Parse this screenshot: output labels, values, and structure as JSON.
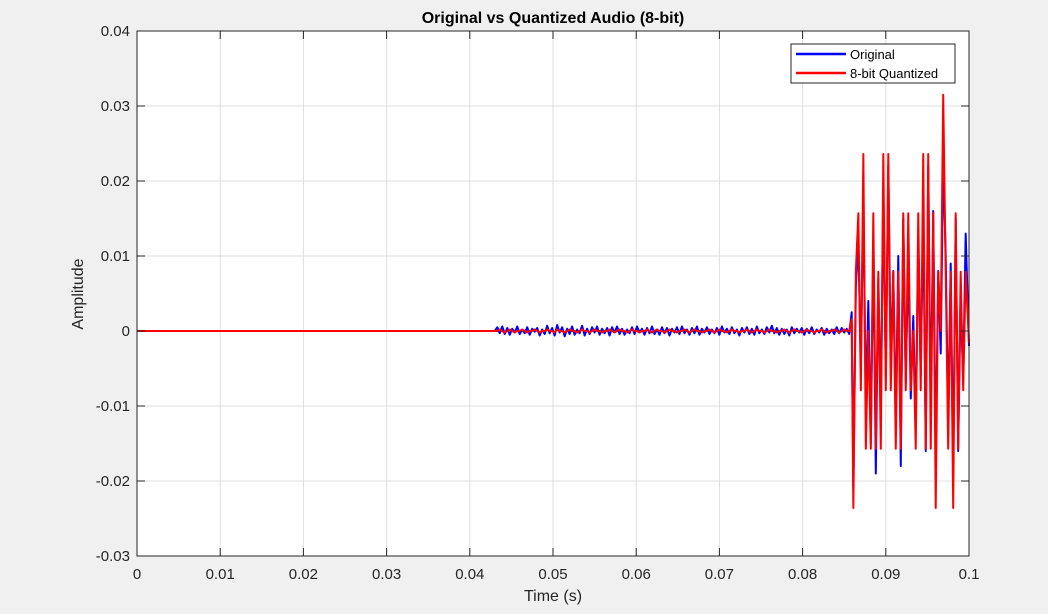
{
  "chart_data": {
    "type": "line",
    "title": "Original vs Quantized Audio (8-bit)",
    "xlabel": "Time (s)",
    "ylabel": "Amplitude",
    "xlim": [
      0,
      0.1
    ],
    "ylim": [
      -0.03,
      0.04
    ],
    "xticks": [
      0,
      0.01,
      0.02,
      0.03,
      0.04,
      0.05,
      0.06,
      0.07,
      0.08,
      0.09,
      0.1
    ],
    "xtick_labels": [
      "0",
      "0.01",
      "0.02",
      "0.03",
      "0.04",
      "0.05",
      "0.06",
      "0.07",
      "0.08",
      "0.09",
      "0.1"
    ],
    "yticks": [
      -0.03,
      -0.02,
      -0.01,
      0,
      0.01,
      0.02,
      0.03,
      0.04
    ],
    "ytick_labels": [
      "-0.03",
      "-0.02",
      "-0.01",
      "0",
      "0.01",
      "0.02",
      "0.03",
      "0.04"
    ],
    "grid": true,
    "legend_position": "top-right",
    "series": [
      {
        "name": "Original",
        "color": "#0000ff",
        "x": [
          0,
          0.043,
          0.0433,
          0.0436,
          0.0439,
          0.0442,
          0.0445,
          0.0448,
          0.0451,
          0.0454,
          0.0457,
          0.046,
          0.0463,
          0.0466,
          0.0469,
          0.0472,
          0.0475,
          0.0478,
          0.0481,
          0.0484,
          0.0487,
          0.049,
          0.0493,
          0.0496,
          0.0499,
          0.0502,
          0.0505,
          0.0508,
          0.0511,
          0.0514,
          0.0517,
          0.052,
          0.0523,
          0.0526,
          0.0529,
          0.0532,
          0.0535,
          0.0538,
          0.0541,
          0.0544,
          0.0547,
          0.055,
          0.0553,
          0.0556,
          0.0559,
          0.0562,
          0.0565,
          0.0568,
          0.0571,
          0.0574,
          0.0577,
          0.058,
          0.0583,
          0.0586,
          0.0589,
          0.0592,
          0.0595,
          0.0598,
          0.0601,
          0.0604,
          0.0607,
          0.061,
          0.0613,
          0.0616,
          0.0619,
          0.0622,
          0.0625,
          0.0628,
          0.0631,
          0.0634,
          0.0637,
          0.064,
          0.0643,
          0.0646,
          0.0649,
          0.0652,
          0.0655,
          0.0658,
          0.0661,
          0.0664,
          0.0667,
          0.067,
          0.0673,
          0.0676,
          0.0679,
          0.0682,
          0.0685,
          0.0688,
          0.0691,
          0.0694,
          0.0697,
          0.07,
          0.0703,
          0.0706,
          0.0709,
          0.0712,
          0.0715,
          0.0718,
          0.0721,
          0.0724,
          0.0727,
          0.073,
          0.0733,
          0.0736,
          0.0739,
          0.0742,
          0.0745,
          0.0748,
          0.0751,
          0.0754,
          0.0757,
          0.076,
          0.0763,
          0.0766,
          0.0769,
          0.0772,
          0.0775,
          0.0778,
          0.0781,
          0.0784,
          0.0787,
          0.079,
          0.0793,
          0.0796,
          0.0799,
          0.0802,
          0.0805,
          0.0808,
          0.0811,
          0.0814,
          0.0817,
          0.082,
          0.0823,
          0.0826,
          0.0829,
          0.0832,
          0.0835,
          0.0838,
          0.0841,
          0.0844,
          0.0847,
          0.085,
          0.0853,
          0.0856,
          0.0859,
          0.0861,
          0.0864,
          0.0867,
          0.087,
          0.0873,
          0.0876,
          0.0879,
          0.0882,
          0.0885,
          0.0888,
          0.0891,
          0.0894,
          0.0897,
          0.09,
          0.0903,
          0.0906,
          0.0909,
          0.0912,
          0.0915,
          0.0918,
          0.0921,
          0.0924,
          0.0927,
          0.093,
          0.0933,
          0.0936,
          0.0939,
          0.0942,
          0.0945,
          0.0948,
          0.0951,
          0.0954,
          0.0957,
          0.096,
          0.0963,
          0.0966,
          0.0969,
          0.0972,
          0.0975,
          0.0978,
          0.0981,
          0.0984,
          0.0987,
          0.099,
          0.0993,
          0.0996,
          0.1
        ],
        "y": [
          0,
          0,
          0.0005,
          -0.0003,
          0.0006,
          -0.0004,
          0.0004,
          -0.0005,
          0.0003,
          -0.0002,
          0.0006,
          -0.0004,
          0.0002,
          -0.0003,
          0.0005,
          -0.0005,
          0.0003,
          -0.0001,
          0.0004,
          -0.0006,
          0.0002,
          -0.0004,
          0.0007,
          -0.0003,
          0.0004,
          -0.0006,
          0.0008,
          -0.0002,
          0.0005,
          -0.0007,
          0.0003,
          -0.0004,
          0.0006,
          -0.0005,
          0.0002,
          -0.0003,
          0.0007,
          -0.0006,
          0.0003,
          -0.0004,
          0.0005,
          -0.0002,
          0.0006,
          -0.0005,
          0.0003,
          -0.0003,
          0.0004,
          -0.0006,
          0.0005,
          -0.0002,
          0.0006,
          -0.0004,
          0.0003,
          -0.0005,
          0.0002,
          -0.0003,
          0.0005,
          -0.0004,
          0.0006,
          -0.0002,
          0.0003,
          -0.0005,
          0.0004,
          -0.0003,
          0.0006,
          -0.0004,
          0.0002,
          -0.0005,
          0.0005,
          -0.0003,
          0.0004,
          -0.0006,
          0.0003,
          -0.0002,
          0.0005,
          -0.0004,
          0.0006,
          -0.0003,
          0.0002,
          -0.0005,
          0.0004,
          -0.0003,
          0.0006,
          -0.0005,
          0.0003,
          -0.0002,
          0.0005,
          -0.0004,
          0.0002,
          -0.0003,
          0.0004,
          -0.0005,
          0.0006,
          -0.0002,
          0.0003,
          -0.0004,
          0.0005,
          -0.0003,
          0.0002,
          -0.0006,
          0.0004,
          -0.0002,
          0.0005,
          -0.0004,
          0.0003,
          -0.0005,
          0.0006,
          -0.0003,
          0.0002,
          -0.0004,
          0.0005,
          -0.0002,
          0.0007,
          -0.0003,
          0.0004,
          -0.0005,
          0.0003,
          -0.0004,
          0.0002,
          -0.0006,
          0.0005,
          -0.0003,
          0.0003,
          -0.0002,
          0.0004,
          -0.0005,
          0.0003,
          -0.0003,
          0.0005,
          -0.0004,
          0.0002,
          -0.0002,
          0.0004,
          -0.0005,
          0.0003,
          -0.0003,
          0.0002,
          -0.0004,
          0.0005,
          -0.0003,
          0.0004,
          -0.0002,
          0.0003,
          -0.0004,
          0.0025,
          -0.021,
          0.006,
          0.012,
          -0.005,
          0.018,
          -0.01,
          0.004,
          -0.015,
          0.012,
          -0.019,
          0.007,
          -0.011,
          0.019,
          -0.006,
          0.022,
          -0.004,
          0.008,
          -0.012,
          0.01,
          -0.018,
          0.015,
          -0.007,
          0.01,
          -0.009,
          0.002,
          -0.013,
          0.012,
          -0.006,
          0.016,
          -0.016,
          0.022,
          -0.011,
          0.016,
          -0.017,
          0.008,
          -0.003,
          0.023,
          0.01,
          -0.012,
          0.009,
          -0.019,
          0.015,
          -0.016,
          0.005,
          -0.007,
          0.013,
          -0.002
        ],
        "note": ""
      },
      {
        "name": "8-bit Quantized",
        "color": "#ff0000",
        "x": [
          0,
          0.043,
          0.0433,
          0.0436,
          0.0439,
          0.0442,
          0.0445,
          0.0448,
          0.0451,
          0.0454,
          0.0457,
          0.046,
          0.0463,
          0.0466,
          0.0469,
          0.0472,
          0.0475,
          0.0478,
          0.0481,
          0.0484,
          0.0487,
          0.049,
          0.0493,
          0.0496,
          0.0499,
          0.0502,
          0.0505,
          0.0508,
          0.0511,
          0.0514,
          0.0517,
          0.052,
          0.0523,
          0.0526,
          0.0529,
          0.0532,
          0.0535,
          0.0538,
          0.0541,
          0.0544,
          0.0547,
          0.055,
          0.0553,
          0.0556,
          0.0559,
          0.0562,
          0.0565,
          0.0568,
          0.0571,
          0.0574,
          0.0577,
          0.058,
          0.0583,
          0.0586,
          0.0589,
          0.0592,
          0.0595,
          0.0598,
          0.0601,
          0.0604,
          0.0607,
          0.061,
          0.0613,
          0.0616,
          0.0619,
          0.0622,
          0.0625,
          0.0628,
          0.0631,
          0.0634,
          0.0637,
          0.064,
          0.0643,
          0.0646,
          0.0649,
          0.0652,
          0.0655,
          0.0658,
          0.0661,
          0.0664,
          0.0667,
          0.067,
          0.0673,
          0.0676,
          0.0679,
          0.0682,
          0.0685,
          0.0688,
          0.0691,
          0.0694,
          0.0697,
          0.07,
          0.0703,
          0.0706,
          0.0709,
          0.0712,
          0.0715,
          0.0718,
          0.0721,
          0.0724,
          0.0727,
          0.073,
          0.0733,
          0.0736,
          0.0739,
          0.0742,
          0.0745,
          0.0748,
          0.0751,
          0.0754,
          0.0757,
          0.076,
          0.0763,
          0.0766,
          0.0769,
          0.0772,
          0.0775,
          0.0778,
          0.0781,
          0.0784,
          0.0787,
          0.079,
          0.0793,
          0.0796,
          0.0799,
          0.0802,
          0.0805,
          0.0808,
          0.0811,
          0.0814,
          0.0817,
          0.082,
          0.0823,
          0.0826,
          0.0829,
          0.0832,
          0.0835,
          0.0838,
          0.0841,
          0.0844,
          0.0847,
          0.085,
          0.0853,
          0.0856,
          0.0859,
          0.0861,
          0.0864,
          0.0867,
          0.087,
          0.0873,
          0.0876,
          0.0879,
          0.0882,
          0.0885,
          0.0888,
          0.0891,
          0.0894,
          0.0897,
          0.09,
          0.0903,
          0.0906,
          0.0909,
          0.0912,
          0.0915,
          0.0918,
          0.0921,
          0.0924,
          0.0927,
          0.093,
          0.0933,
          0.0936,
          0.0939,
          0.0942,
          0.0945,
          0.0948,
          0.0951,
          0.0954,
          0.0957,
          0.096,
          0.0963,
          0.0966,
          0.0969,
          0.0972,
          0.0975,
          0.0978,
          0.0981,
          0.0984,
          0.0987,
          0.099,
          0.0993,
          0.0996,
          0.1
        ],
        "y": [
          0,
          0,
          0,
          0.0002,
          0,
          -0.0002,
          0,
          0.0002,
          0,
          -0.0002,
          0,
          0,
          0.0002,
          0,
          -0.0002,
          0,
          0,
          0.0002,
          0,
          -0.0002,
          0,
          0,
          0.0002,
          0,
          0,
          -0.0002,
          0.0002,
          0,
          0,
          -0.0002,
          0,
          0.0002,
          0,
          0,
          -0.0002,
          0,
          0.0002,
          0,
          0,
          -0.0002,
          0,
          0.0002,
          0,
          0,
          -0.0002,
          0,
          0,
          0.0002,
          0,
          -0.0002,
          0,
          0.0002,
          0,
          0,
          -0.0002,
          0,
          0.0002,
          0,
          0,
          -0.0002,
          0,
          0,
          0.0002,
          0,
          -0.0002,
          0,
          0.0002,
          0,
          0,
          -0.0002,
          0,
          0.0002,
          0,
          0,
          -0.0002,
          0,
          0,
          0.0002,
          0,
          -0.0002,
          0,
          0.0002,
          0,
          0,
          -0.0002,
          0,
          0,
          0.0002,
          0,
          -0.0002,
          0,
          0.0002,
          0,
          0,
          -0.0002,
          0,
          0.0002,
          0,
          0,
          -0.0002,
          0,
          0,
          0.0002,
          0,
          -0.0002,
          0,
          0.0002,
          0,
          0,
          -0.0002,
          0,
          0.0002,
          0,
          0,
          -0.0002,
          0,
          0,
          0.0002,
          0,
          -0.0002,
          0,
          0.0002,
          0,
          0,
          -0.0002,
          0,
          0.0002,
          0,
          0,
          -0.0002,
          0,
          0,
          0.0002,
          0,
          -0.0002,
          0,
          0,
          0.0002,
          0,
          -0.0002,
          0,
          0.0002,
          0,
          0,
          0.0016,
          -0.0236,
          0.0079,
          0.0157,
          -0.0079,
          0.0236,
          -0.0157,
          0,
          -0.0157,
          0.0157,
          -0.0157,
          0.0079,
          -0.0157,
          0.0236,
          -0.0079,
          0.0236,
          -0.0079,
          0.0079,
          -0.0157,
          0.0079,
          -0.0157,
          0.0157,
          -0.0079,
          0.0157,
          -0.0079,
          0,
          -0.0157,
          0.0157,
          -0.0079,
          0.0236,
          -0.0157,
          0.0236,
          -0.0157,
          0.0157,
          -0.0236,
          0.0079,
          0,
          0.0315,
          0.0079,
          -0.0157,
          0.0079,
          -0.0236,
          0.0157,
          -0.0157,
          0.0079,
          -0.0079,
          0.0079,
          -0.0016
        ],
        "note": ""
      }
    ]
  }
}
